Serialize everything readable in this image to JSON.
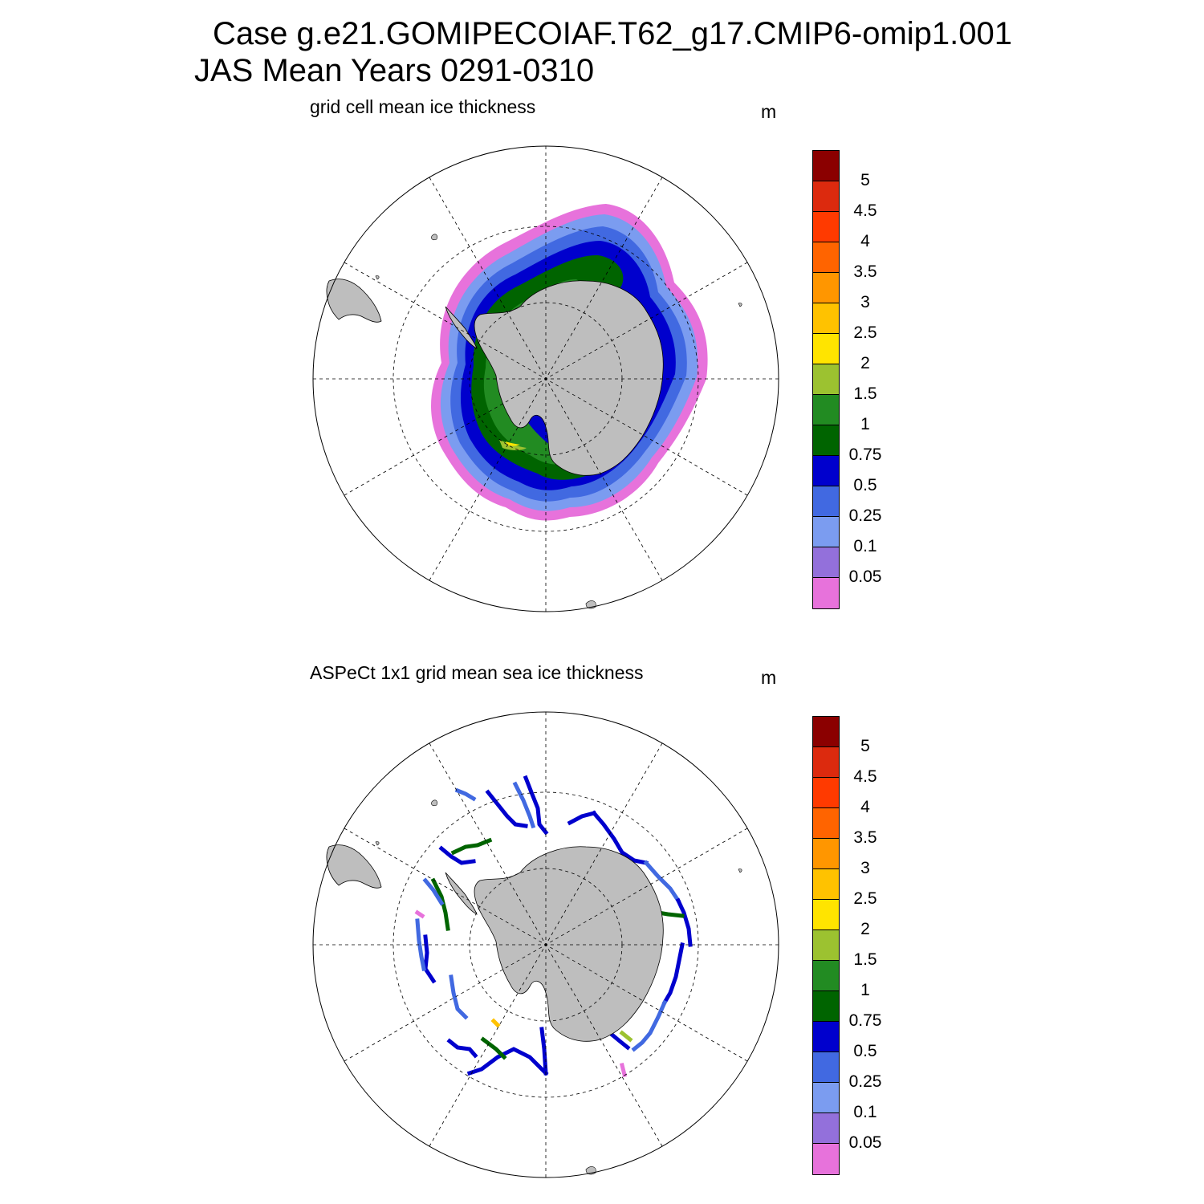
{
  "header": {
    "line1": "Case g.e21.GOMIPECOIAF.T62_g17.CMIP6-omip1.001",
    "line2": "JAS Mean   Years 0291-0310"
  },
  "panels": [
    {
      "title": "grid cell mean ice thickness",
      "unit": "m"
    },
    {
      "title": "ASPeCt 1x1 grid mean sea ice thickness",
      "unit": "m"
    }
  ],
  "colorbar": {
    "labels_top_down": [
      "5",
      "4.5",
      "4",
      "3.5",
      "3",
      "2.5",
      "2",
      "1.5",
      "1",
      "0.75",
      "0.5",
      "0.25",
      "0.1",
      "0.05"
    ],
    "colors_top_down": [
      "#8B0000",
      "#DC2A0E",
      "#FF3A00",
      "#FF6400",
      "#FF9600",
      "#FFC200",
      "#FFE400",
      "#9CC230",
      "#228B22",
      "#006400",
      "#0000CD",
      "#4169E1",
      "#7B9CF0",
      "#9370DB",
      "#E772DB"
    ]
  },
  "colors": {
    "land": "#BEBEBE",
    "ocean": "#FFFFFF"
  }
}
